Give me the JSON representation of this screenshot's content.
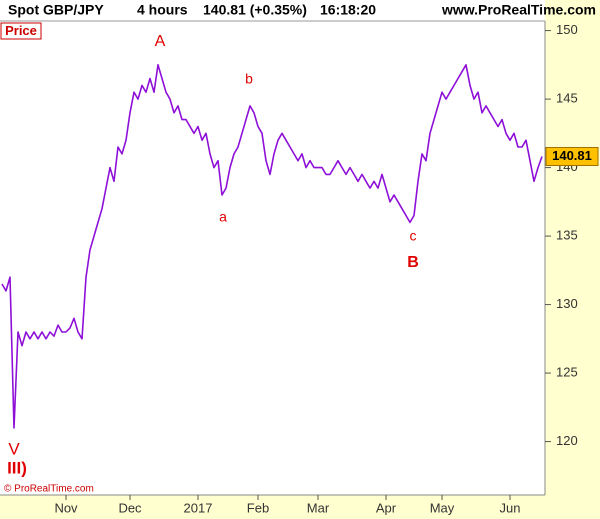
{
  "header": {
    "symbol": "Spot GBP/JPY",
    "timeframe": "4 hours",
    "quote": "140.81 (+0.35%)",
    "time": "16:18:20",
    "site": "www.ProRealTime.com"
  },
  "chart_data": {
    "type": "line",
    "title": "Price",
    "copyright": "© ProRealTime.com",
    "categories": [
      null,
      null,
      null,
      null,
      null,
      null,
      null,
      null,
      null,
      null,
      null,
      null,
      null,
      null,
      null,
      null,
      "Nov",
      null,
      null,
      null,
      null,
      null,
      null,
      null,
      null,
      null,
      null,
      null,
      null,
      null,
      null,
      null,
      "Dec",
      null,
      null,
      null,
      null,
      null,
      null,
      null,
      null,
      null,
      null,
      null,
      null,
      null,
      null,
      null,
      null,
      "2017",
      null,
      null,
      null,
      null,
      null,
      null,
      null,
      null,
      null,
      null,
      null,
      null,
      null,
      null,
      "Feb",
      null,
      null,
      null,
      null,
      null,
      null,
      null,
      null,
      null,
      null,
      null,
      null,
      null,
      null,
      "Mar",
      null,
      null,
      null,
      null,
      null,
      null,
      null,
      null,
      null,
      null,
      null,
      null,
      null,
      null,
      null,
      null,
      "Apr",
      null,
      null,
      null,
      null,
      null,
      null,
      null,
      null,
      null,
      null,
      null,
      null,
      null,
      "May",
      null,
      null,
      null,
      null,
      null,
      null,
      null,
      null,
      null,
      null,
      null,
      null,
      null,
      null,
      null,
      null,
      "Jun",
      null,
      null,
      null,
      null,
      null,
      null,
      null,
      null
    ],
    "series": [
      {
        "name": "Spot GBP/JPY",
        "color": "#8e10d8",
        "values": [
          131.5,
          131,
          132,
          121,
          128,
          127,
          128,
          127.5,
          128,
          127.5,
          128,
          127.5,
          128,
          127.7,
          128.5,
          128,
          128,
          128.3,
          129,
          128,
          127.5,
          132,
          134,
          135,
          136,
          137,
          138.5,
          140,
          139,
          141.5,
          141,
          142,
          144,
          145.5,
          145,
          146,
          145.5,
          146.5,
          145.5,
          147.5,
          146.5,
          145.5,
          145,
          144,
          144.5,
          143.5,
          143.5,
          143,
          142.5,
          143,
          142,
          142.5,
          141,
          140,
          140.5,
          138,
          138.5,
          140,
          141,
          141.5,
          142.5,
          143.5,
          144.5,
          144,
          143,
          142.5,
          140.5,
          139.5,
          141,
          142,
          142.5,
          142,
          141.5,
          141,
          140.5,
          141,
          140,
          140.5,
          140,
          140,
          140,
          139.5,
          139.5,
          140,
          140.5,
          140,
          139.5,
          140,
          139.5,
          139,
          139.5,
          139,
          138.5,
          139,
          138.5,
          139.5,
          138.5,
          137.5,
          138,
          137.5,
          137,
          136.5,
          136,
          136.5,
          139,
          141,
          140.5,
          142.5,
          143.5,
          144.5,
          145.5,
          145,
          145.5,
          146,
          146.5,
          147,
          147.5,
          146,
          145,
          145.5,
          144,
          144.5,
          144,
          143.5,
          143,
          143.5,
          142.5,
          142,
          142.5,
          141.5,
          141.5,
          142,
          140.5,
          139,
          140,
          140.81
        ]
      }
    ],
    "last_price": 140.81,
    "ylim": [
      116.1,
      150.7
    ],
    "yticks": [
      120,
      125,
      130,
      135,
      140,
      145,
      150
    ],
    "annotations": [
      "A",
      "b",
      "a",
      "c",
      "B",
      "V",
      "III)"
    ]
  }
}
